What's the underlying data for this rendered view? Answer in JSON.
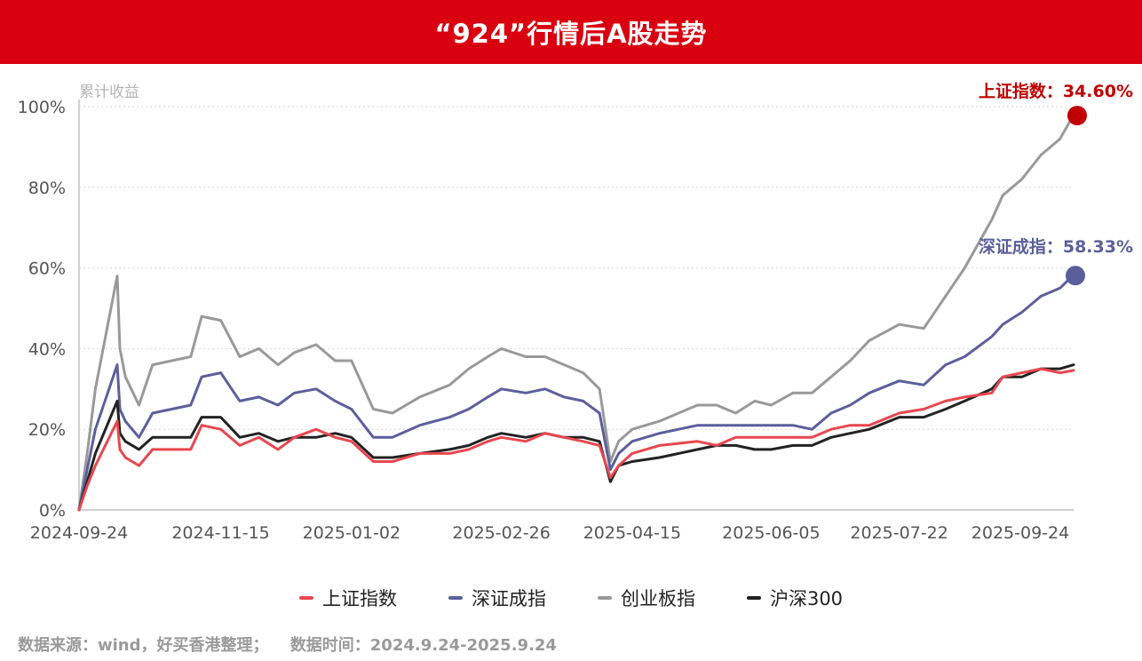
{
  "header": {
    "title": "“924”行情后A股走势"
  },
  "chart_data": {
    "type": "line",
    "ylabel": "累计收益",
    "ylim": [
      0,
      100
    ],
    "y_ticks": [
      "0%",
      "20%",
      "40%",
      "60%",
      "80%",
      "100%"
    ],
    "x_ticks": [
      "2024-09-24",
      "2024-11-15",
      "2025-01-02",
      "2025-02-26",
      "2025-04-15",
      "2025-06-05",
      "2025-07-22",
      "2025-09-24"
    ],
    "grid": "horizontal-dotted",
    "legend_position": "bottom",
    "annotations": [
      {
        "label": "上证指数：34.60%",
        "series": "上证指数",
        "color": "#c00000"
      },
      {
        "label": "深证成指：58.33%",
        "series": "深证成指",
        "color": "#5a5f9c"
      }
    ],
    "series": [
      {
        "name": "上证指数",
        "color": "#e8474f",
        "x": [
          "2024-09-24",
          "2024-09-27",
          "2024-09-30",
          "2024-10-08",
          "2024-10-09",
          "2024-10-11",
          "2024-10-16",
          "2024-10-21",
          "2024-10-28",
          "2024-11-04",
          "2024-11-08",
          "2024-11-15",
          "2024-11-22",
          "2024-11-29",
          "2024-12-06",
          "2024-12-12",
          "2024-12-20",
          "2024-12-27",
          "2025-01-02",
          "2025-01-10",
          "2025-01-17",
          "2025-01-27",
          "2025-02-07",
          "2025-02-14",
          "2025-02-21",
          "2025-02-26",
          "2025-03-07",
          "2025-03-14",
          "2025-03-21",
          "2025-03-28",
          "2025-04-03",
          "2025-04-07",
          "2025-04-10",
          "2025-04-15",
          "2025-04-25",
          "2025-05-09",
          "2025-05-16",
          "2025-05-23",
          "2025-05-30",
          "2025-06-05",
          "2025-06-13",
          "2025-06-20",
          "2025-06-27",
          "2025-07-04",
          "2025-07-11",
          "2025-07-22",
          "2025-07-31",
          "2025-08-08",
          "2025-08-15",
          "2025-08-25",
          "2025-08-29",
          "2025-09-05",
          "2025-09-12",
          "2025-09-19",
          "2025-09-24"
        ],
        "values": [
          0,
          6,
          11,
          22,
          15,
          13,
          11,
          15,
          15,
          15,
          21,
          20,
          16,
          18,
          15,
          18,
          20,
          18,
          17,
          12,
          12,
          14,
          14,
          15,
          17,
          18,
          17,
          19,
          18,
          17,
          16,
          8,
          11,
          14,
          16,
          17,
          16,
          18,
          18,
          18,
          18,
          18,
          20,
          21,
          21,
          24,
          25,
          27,
          28,
          29,
          33,
          34,
          35,
          34,
          34.6
        ]
      },
      {
        "name": "深证成指",
        "color": "#5a5f9c",
        "x": [
          "2024-09-24",
          "2024-09-27",
          "2024-09-30",
          "2024-10-08",
          "2024-10-09",
          "2024-10-11",
          "2024-10-16",
          "2024-10-21",
          "2024-10-28",
          "2024-11-04",
          "2024-11-08",
          "2024-11-15",
          "2024-11-22",
          "2024-11-29",
          "2024-12-06",
          "2024-12-12",
          "2024-12-20",
          "2024-12-27",
          "2025-01-02",
          "2025-01-10",
          "2025-01-17",
          "2025-01-27",
          "2025-02-07",
          "2025-02-14",
          "2025-02-21",
          "2025-02-26",
          "2025-03-07",
          "2025-03-14",
          "2025-03-21",
          "2025-03-28",
          "2025-04-03",
          "2025-04-07",
          "2025-04-10",
          "2025-04-15",
          "2025-04-25",
          "2025-05-09",
          "2025-05-16",
          "2025-05-23",
          "2025-05-30",
          "2025-06-05",
          "2025-06-13",
          "2025-06-20",
          "2025-06-27",
          "2025-07-04",
          "2025-07-11",
          "2025-07-22",
          "2025-07-31",
          "2025-08-08",
          "2025-08-15",
          "2025-08-25",
          "2025-08-29",
          "2025-09-05",
          "2025-09-12",
          "2025-09-19",
          "2025-09-24"
        ],
        "values": [
          0,
          10,
          20,
          36,
          25,
          22,
          18,
          24,
          25,
          26,
          33,
          34,
          27,
          28,
          26,
          29,
          30,
          27,
          25,
          18,
          18,
          21,
          23,
          25,
          28,
          30,
          29,
          30,
          28,
          27,
          24,
          10,
          14,
          17,
          19,
          21,
          21,
          21,
          21,
          21,
          21,
          20,
          24,
          26,
          29,
          32,
          31,
          36,
          38,
          43,
          46,
          49,
          53,
          55,
          58.33
        ]
      },
      {
        "name": "创业板指",
        "color": "#999999",
        "x": [
          "2024-09-24",
          "2024-09-27",
          "2024-09-30",
          "2024-10-08",
          "2024-10-09",
          "2024-10-11",
          "2024-10-16",
          "2024-10-21",
          "2024-10-28",
          "2024-11-04",
          "2024-11-08",
          "2024-11-15",
          "2024-11-22",
          "2024-11-29",
          "2024-12-06",
          "2024-12-12",
          "2024-12-20",
          "2024-12-27",
          "2025-01-02",
          "2025-01-10",
          "2025-01-17",
          "2025-01-27",
          "2025-02-07",
          "2025-02-14",
          "2025-02-21",
          "2025-02-26",
          "2025-03-07",
          "2025-03-14",
          "2025-03-21",
          "2025-03-28",
          "2025-04-03",
          "2025-04-07",
          "2025-04-10",
          "2025-04-15",
          "2025-04-25",
          "2025-05-09",
          "2025-05-16",
          "2025-05-23",
          "2025-05-30",
          "2025-06-05",
          "2025-06-13",
          "2025-06-20",
          "2025-06-27",
          "2025-07-04",
          "2025-07-11",
          "2025-07-22",
          "2025-07-31",
          "2025-08-08",
          "2025-08-15",
          "2025-08-25",
          "2025-08-29",
          "2025-09-05",
          "2025-09-12",
          "2025-09-19",
          "2025-09-24"
        ],
        "values": [
          0,
          14,
          30,
          58,
          40,
          33,
          26,
          36,
          37,
          38,
          48,
          47,
          38,
          40,
          36,
          39,
          41,
          37,
          37,
          25,
          24,
          28,
          31,
          35,
          38,
          40,
          38,
          38,
          36,
          34,
          30,
          12,
          17,
          20,
          22,
          26,
          26,
          24,
          27,
          26,
          29,
          29,
          33,
          37,
          42,
          46,
          45,
          53,
          60,
          72,
          78,
          82,
          88,
          92,
          98
        ]
      },
      {
        "name": "沪深300",
        "color": "#222222",
        "x": [
          "2024-09-24",
          "2024-09-27",
          "2024-09-30",
          "2024-10-08",
          "2024-10-09",
          "2024-10-11",
          "2024-10-16",
          "2024-10-21",
          "2024-10-28",
          "2024-11-04",
          "2024-11-08",
          "2024-11-15",
          "2024-11-22",
          "2024-11-29",
          "2024-12-06",
          "2024-12-12",
          "2024-12-20",
          "2024-12-27",
          "2025-01-02",
          "2025-01-10",
          "2025-01-17",
          "2025-01-27",
          "2025-02-07",
          "2025-02-14",
          "2025-02-21",
          "2025-02-26",
          "2025-03-07",
          "2025-03-14",
          "2025-03-21",
          "2025-03-28",
          "2025-04-03",
          "2025-04-07",
          "2025-04-10",
          "2025-04-15",
          "2025-04-25",
          "2025-05-09",
          "2025-05-16",
          "2025-05-23",
          "2025-05-30",
          "2025-06-05",
          "2025-06-13",
          "2025-06-20",
          "2025-06-27",
          "2025-07-04",
          "2025-07-11",
          "2025-07-22",
          "2025-07-31",
          "2025-08-08",
          "2025-08-15",
          "2025-08-25",
          "2025-08-29",
          "2025-09-05",
          "2025-09-12",
          "2025-09-19",
          "2025-09-24"
        ],
        "values": [
          0,
          7,
          14,
          27,
          19,
          17,
          15,
          18,
          18,
          18,
          23,
          23,
          18,
          19,
          17,
          18,
          18,
          19,
          18,
          13,
          13,
          14,
          15,
          16,
          18,
          19,
          18,
          19,
          18,
          18,
          17,
          7,
          11,
          12,
          13,
          15,
          16,
          16,
          15,
          15,
          16,
          16,
          18,
          19,
          20,
          23,
          23,
          25,
          27,
          30,
          33,
          33,
          35,
          35,
          36
        ]
      }
    ]
  },
  "footer": {
    "source": "数据来源：wind，好买香港整理；",
    "time": "数据时间：2024.9.24-2025.9.24"
  }
}
